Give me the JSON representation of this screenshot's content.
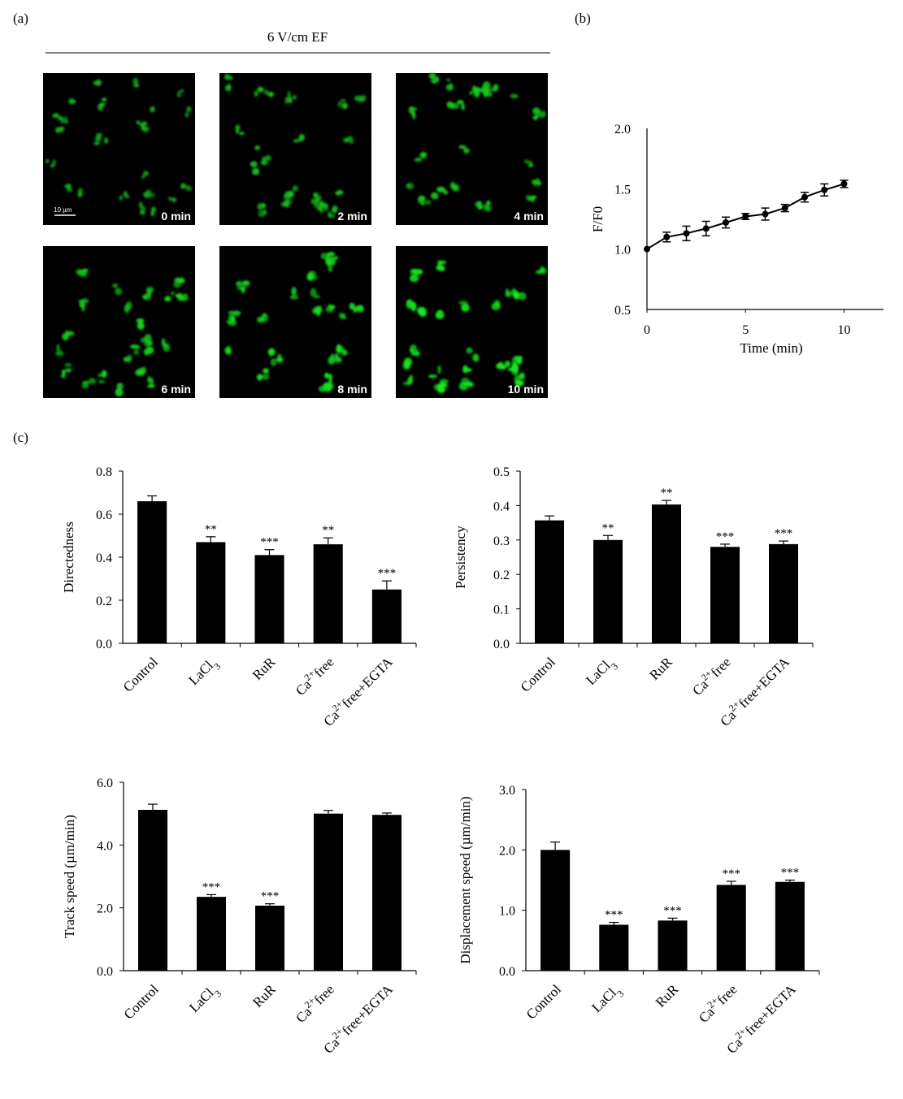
{
  "panels": {
    "a": {
      "label": "(a)",
      "header": "6 V/cm EF",
      "scale_bar": "10 µm",
      "images": [
        {
          "time": "0 min",
          "brightness": 0.55
        },
        {
          "time": "2 min",
          "brightness": 0.65
        },
        {
          "time": "4 min",
          "brightness": 0.72
        },
        {
          "time": "6 min",
          "brightness": 0.8
        },
        {
          "time": "8 min",
          "brightness": 0.88
        },
        {
          "time": "10 min",
          "brightness": 0.95
        }
      ]
    },
    "b": {
      "label": "(b)"
    },
    "c": {
      "label": "(c)"
    }
  },
  "chart_data": [
    {
      "id": "b",
      "type": "line",
      "title": "",
      "xlabel": "Time (min)",
      "ylabel": "F/F0",
      "x": [
        0,
        1,
        2,
        3,
        4,
        5,
        6,
        7,
        8,
        9,
        10
      ],
      "y": [
        1.0,
        1.1,
        1.13,
        1.17,
        1.22,
        1.27,
        1.29,
        1.34,
        1.43,
        1.49,
        1.54
      ],
      "error": [
        0,
        0.04,
        0.06,
        0.06,
        0.045,
        0.025,
        0.05,
        0.03,
        0.04,
        0.05,
        0.03
      ],
      "xlim": [
        0,
        12
      ],
      "ylim": [
        0.5,
        2.0
      ],
      "xticks": [
        0,
        5,
        10
      ],
      "yticks": [
        "0.5",
        "1.0",
        "1.5",
        "2.0"
      ],
      "ytick_values": [
        0.5,
        1.0,
        1.5,
        2.0
      ],
      "grid": false
    },
    {
      "id": "c1",
      "type": "bar",
      "ylabel": "Directedness",
      "categories": [
        "Control",
        "LaCl3",
        "RuR",
        "Ca2+free",
        "Ca2+free+EGTA"
      ],
      "values": [
        0.66,
        0.47,
        0.41,
        0.46,
        0.25
      ],
      "errors": [
        0.025,
        0.025,
        0.025,
        0.03,
        0.04
      ],
      "significance": [
        "",
        "**",
        "***",
        "**",
        "***"
      ],
      "ylim": [
        0,
        0.8
      ],
      "yticks": [
        "0.0",
        "0.2",
        "0.4",
        "0.6",
        "0.8"
      ],
      "ytick_values": [
        0,
        0.2,
        0.4,
        0.6,
        0.8
      ]
    },
    {
      "id": "c2",
      "type": "bar",
      "ylabel": "Persistency",
      "categories": [
        "Control",
        "LaCl3",
        "RuR",
        "Ca2+free",
        "Ca2+free+EGTA"
      ],
      "values": [
        0.357,
        0.3,
        0.403,
        0.28,
        0.288
      ],
      "errors": [
        0.013,
        0.013,
        0.012,
        0.008,
        0.009
      ],
      "significance": [
        "",
        "**",
        "**",
        "***",
        "***"
      ],
      "ylim": [
        0,
        0.5
      ],
      "yticks": [
        "0.0",
        "0.1",
        "0.2",
        "0.3",
        "0.4",
        "0.5"
      ],
      "ytick_values": [
        0,
        0.1,
        0.2,
        0.3,
        0.4,
        0.5
      ]
    },
    {
      "id": "c3",
      "type": "bar",
      "ylabel": "Track speed  (µm/min)",
      "categories": [
        "Control",
        "LaCl3",
        "RuR",
        "Ca2+free",
        "Ca2+free+EGTA"
      ],
      "values": [
        5.12,
        2.35,
        2.07,
        5.0,
        4.96
      ],
      "errors": [
        0.18,
        0.07,
        0.06,
        0.1,
        0.06
      ],
      "significance": [
        "",
        "***",
        "***",
        "",
        ""
      ],
      "ylim": [
        0,
        6
      ],
      "yticks": [
        "0.0",
        "2.0",
        "4.0",
        "6.0"
      ],
      "ytick_values": [
        0,
        2,
        4,
        6
      ]
    },
    {
      "id": "c4",
      "type": "bar",
      "ylabel": "Displacement speed (µm/min)",
      "categories": [
        "Control",
        "LaCl3",
        "RuR",
        "Ca2+free",
        "Ca2+free+EGTA"
      ],
      "values": [
        2.0,
        0.76,
        0.83,
        1.42,
        1.47
      ],
      "errors": [
        0.13,
        0.04,
        0.04,
        0.06,
        0.03
      ],
      "significance": [
        "",
        "***",
        "***",
        "***",
        "***"
      ],
      "ylim": [
        0,
        3
      ],
      "yticks": [
        "0.0",
        "1.0",
        "2.0",
        "3.0"
      ],
      "ytick_values": [
        0,
        1,
        2,
        3
      ]
    }
  ]
}
